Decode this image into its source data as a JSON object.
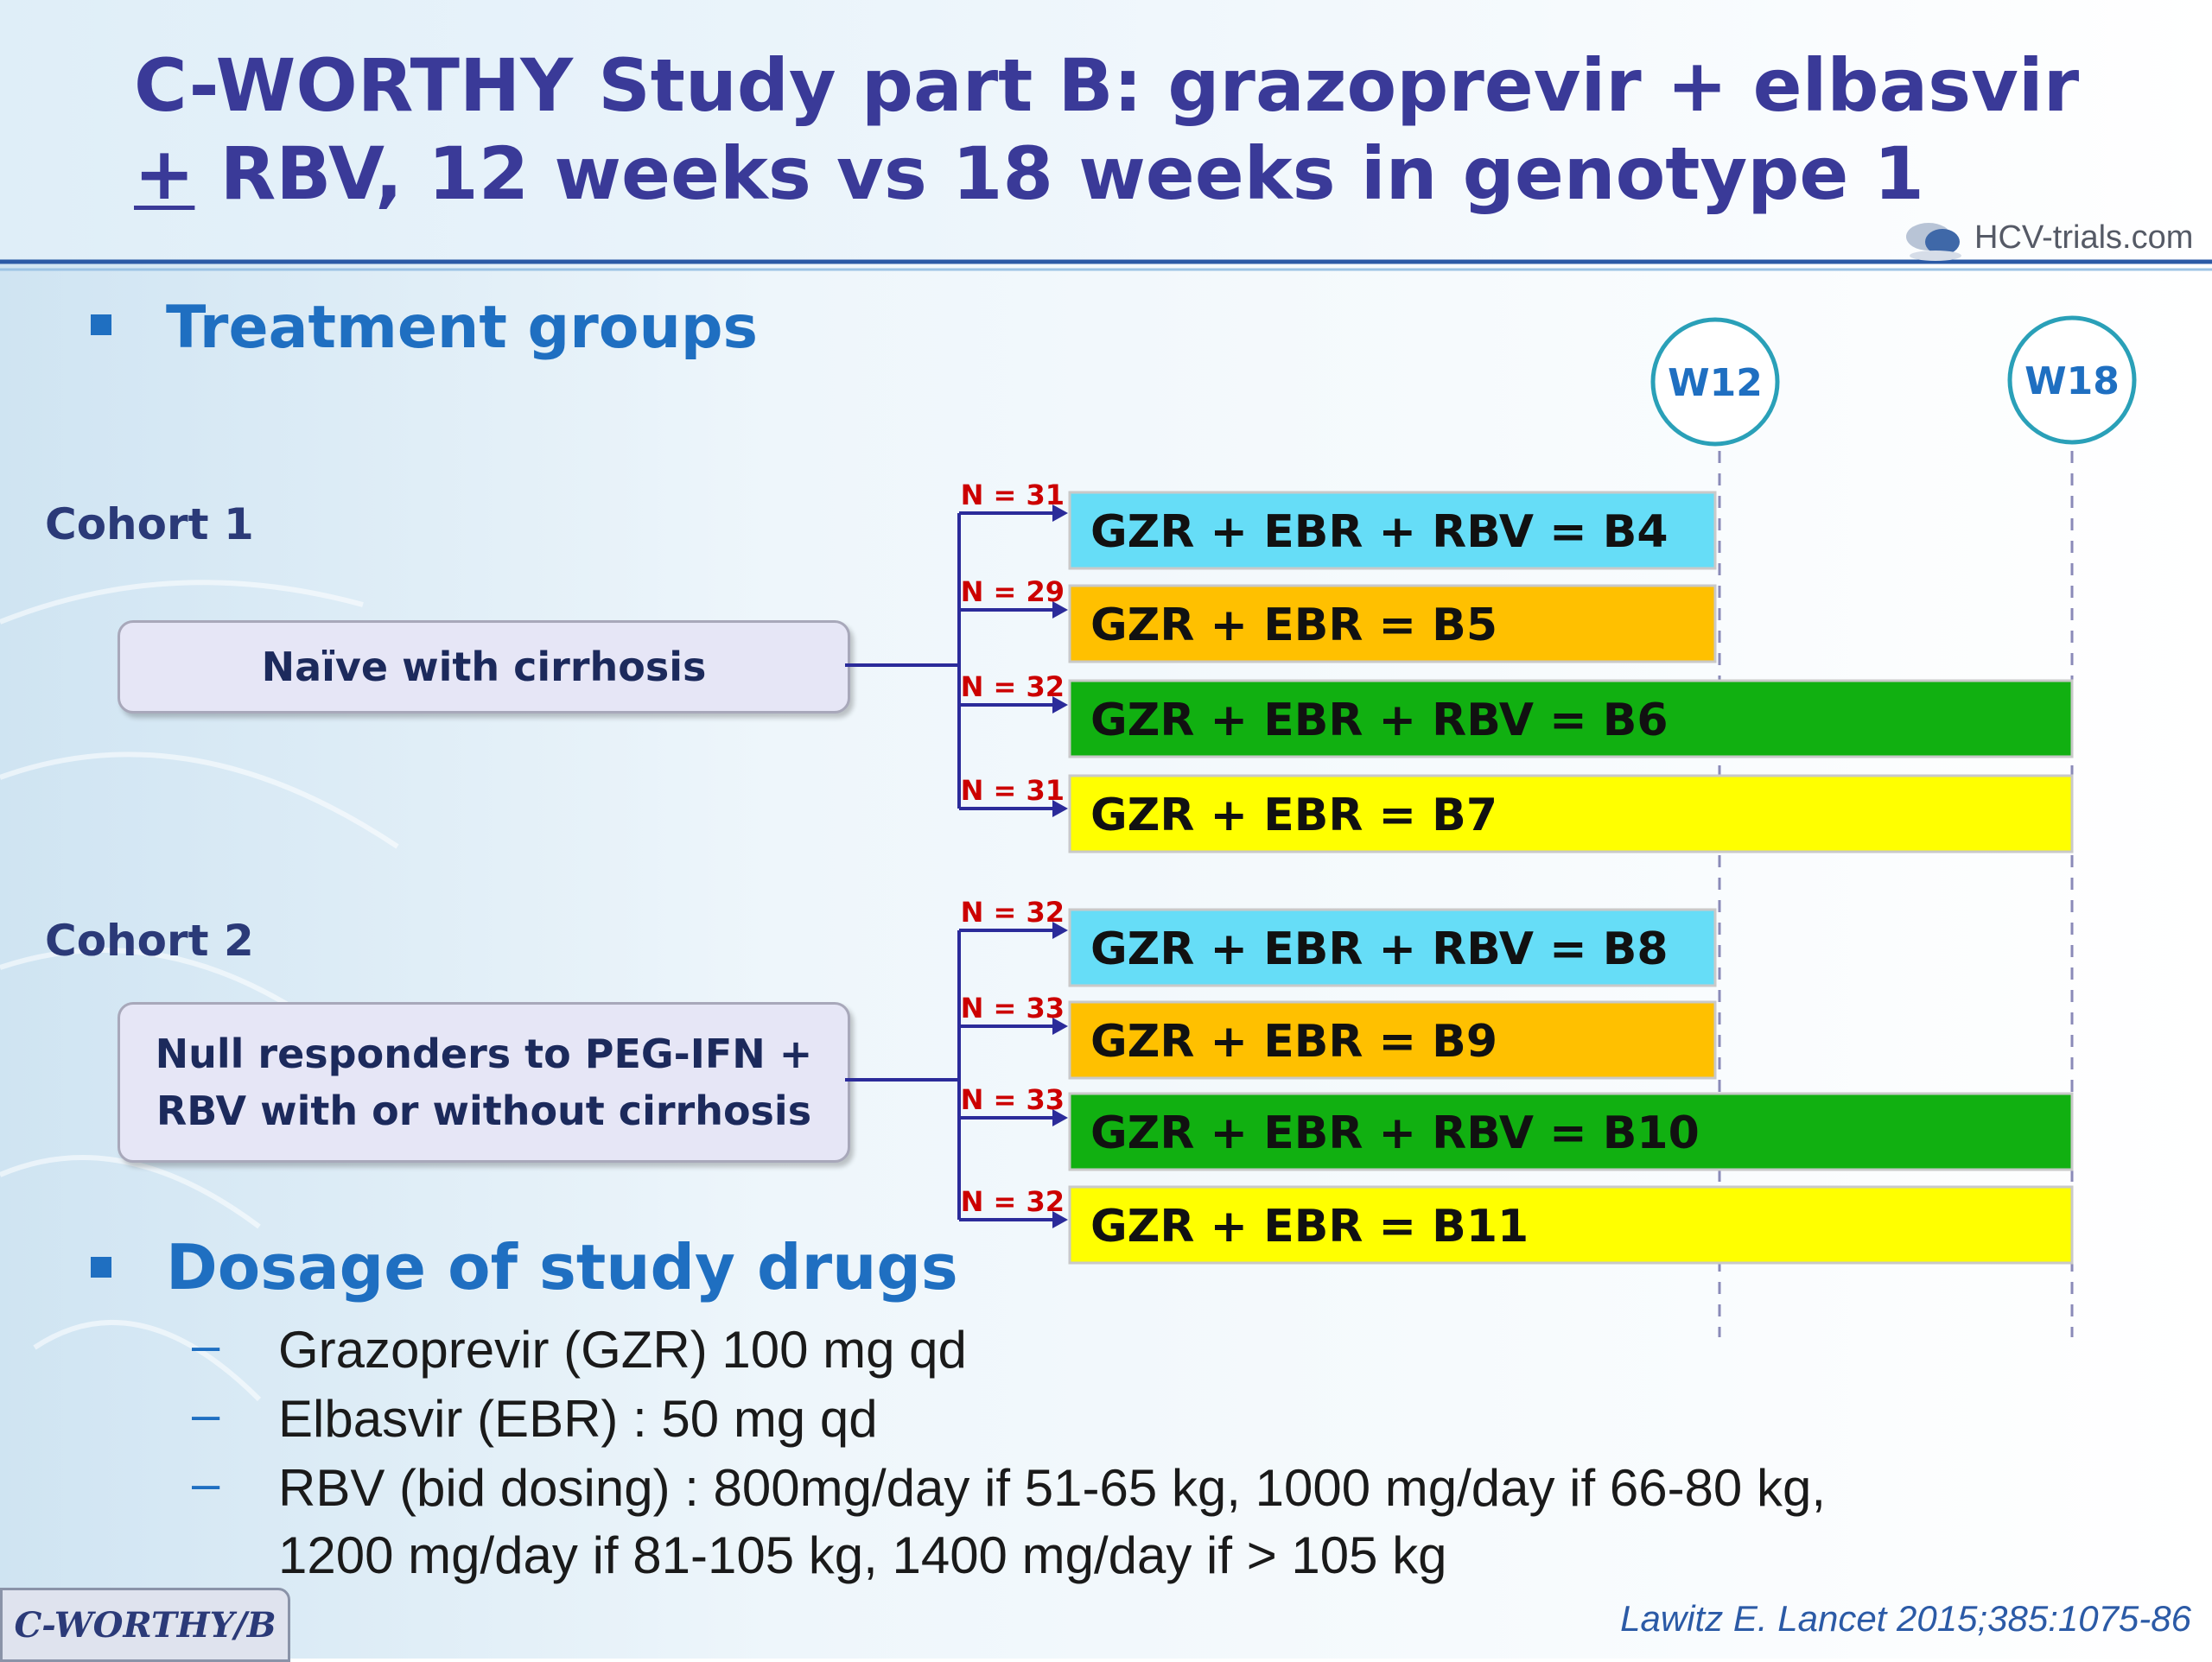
{
  "title": {
    "line1": "C-WORTHY Study part B: grazoprevir + elbasvir",
    "line2_pm": "+",
    "line2_rest": " RBV, 12 weeks vs 18 weeks in genotype 1"
  },
  "logo": {
    "text": "HCV-trials.com"
  },
  "sections": {
    "treatment_heading": "Treatment groups",
    "dosage_heading": "Dosage of study drugs"
  },
  "timeline": {
    "w12_label": "W12",
    "w18_label": "W18"
  },
  "cohorts": [
    {
      "label": "Cohort 1",
      "group": "Naïve with cirrhosis",
      "arms": [
        {
          "n": "N = 31",
          "label": "GZR + EBR + RBV = B4",
          "color": "#66ddf7",
          "end": "W12"
        },
        {
          "n": "N = 29",
          "label": "GZR + EBR = B5",
          "color": "#ffc000",
          "end": "W12"
        },
        {
          "n": "N = 32",
          "label": "GZR + EBR + RBV = B6",
          "color": "#11b011",
          "end": "W18"
        },
        {
          "n": "N = 31",
          "label": "GZR + EBR = B7",
          "color": "#ffff00",
          "end": "W18"
        }
      ]
    },
    {
      "label": "Cohort 2",
      "group_line1": "Null responders to PEG-IFN +",
      "group_line2": "RBV with or without cirrhosis",
      "arms": [
        {
          "n": "N = 32",
          "label": "GZR + EBR + RBV = B8",
          "color": "#66ddf7",
          "end": "W12"
        },
        {
          "n": "N = 33",
          "label": "GZR + EBR = B9",
          "color": "#ffc000",
          "end": "W12"
        },
        {
          "n": "N = 33",
          "label": "GZR + EBR + RBV = B10",
          "color": "#11b011",
          "end": "W18"
        },
        {
          "n": "N = 32",
          "label": "GZR + EBR = B11",
          "color": "#ffff00",
          "end": "W18"
        }
      ]
    }
  ],
  "dosage": {
    "items": [
      "Grazoprevir (GZR) 100 mg qd",
      "Elbasvir (EBR) : 50 mg qd",
      "RBV (bid dosing) : 800mg/day if 51-65 kg, 1000 mg/day if 66-80 kg,"
    ],
    "continuation": "1200 mg/day if 81-105 kg, 1400 mg/day if > 105 kg"
  },
  "footer": {
    "tag": "C-WORTHY/B",
    "citation": "Lawitz E. Lancet 2015;385:1075-86"
  },
  "colors": {
    "title": "#3a3a98",
    "heading": "#1f6fc1",
    "connector": "#2b2b9a",
    "n_label": "#cc0000"
  }
}
